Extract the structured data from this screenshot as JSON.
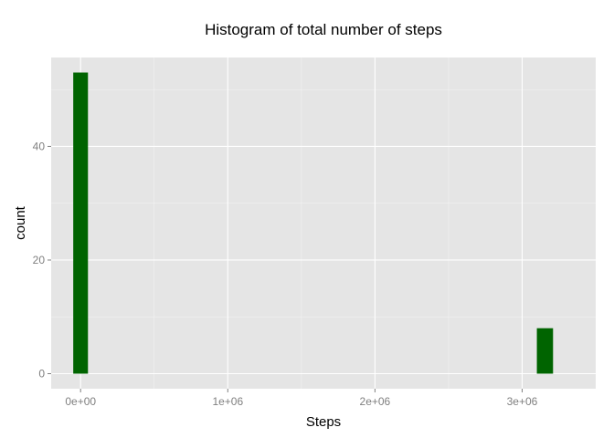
{
  "chart_data": {
    "type": "bar",
    "title": "Histogram of total number of steps",
    "xlabel": "Steps",
    "ylabel": "count",
    "xlim": [
      -200000,
      3500000
    ],
    "ylim": [
      -2.65,
      55.65
    ],
    "x_ticks": [
      0,
      1000000,
      2000000,
      3000000
    ],
    "x_tick_labels": [
      "0e+00",
      "1e+06",
      "2e+06",
      "3e+06"
    ],
    "y_ticks": [
      0,
      20,
      40
    ],
    "y_tick_labels": [
      "0",
      "20",
      "40"
    ],
    "bar_color": "#006400",
    "panel_color": "#e5e5e5",
    "bins": [
      {
        "x0": -50000,
        "x1": 50000,
        "count": 53
      },
      {
        "x0": 3100000,
        "x1": 3210000,
        "count": 8
      }
    ]
  }
}
